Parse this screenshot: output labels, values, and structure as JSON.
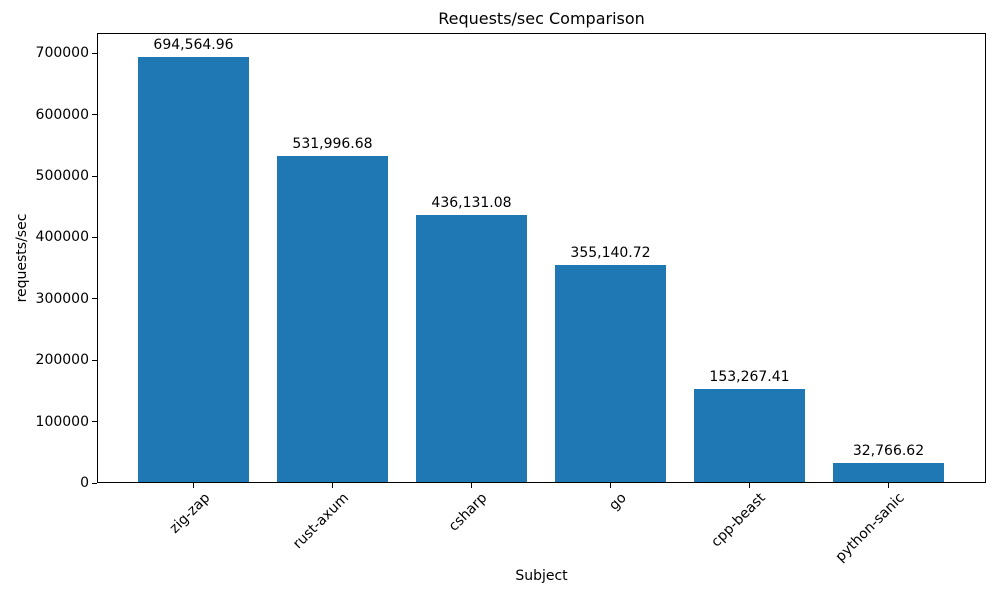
{
  "chart_data": {
    "type": "bar",
    "title": "Requests/sec Comparison",
    "xlabel": "Subject",
    "ylabel": "requests/sec",
    "categories": [
      "zig-zap",
      "rust-axum",
      "csharp",
      "go",
      "cpp-beast",
      "python-sanic"
    ],
    "values": [
      694564.96,
      531996.68,
      436131.08,
      355140.72,
      153267.41,
      32766.62
    ],
    "value_labels": [
      "694,564.96",
      "531,996.68",
      "436,131.08",
      "355,140.72",
      "153,267.41",
      "32,766.62"
    ],
    "bar_color": "#1f77b4",
    "axis_color": "#000000",
    "text_color": "#000000",
    "background_color": "#ffffff",
    "ylim": [
      0,
      733000
    ],
    "yticks": [
      0,
      100000,
      200000,
      300000,
      400000,
      500000,
      600000,
      700000
    ],
    "ytick_labels": [
      "0",
      "100000",
      "200000",
      "300000",
      "400000",
      "500000",
      "600000",
      "700000"
    ],
    "x_tick_rotation": 45,
    "grid": false,
    "legend": null
  }
}
